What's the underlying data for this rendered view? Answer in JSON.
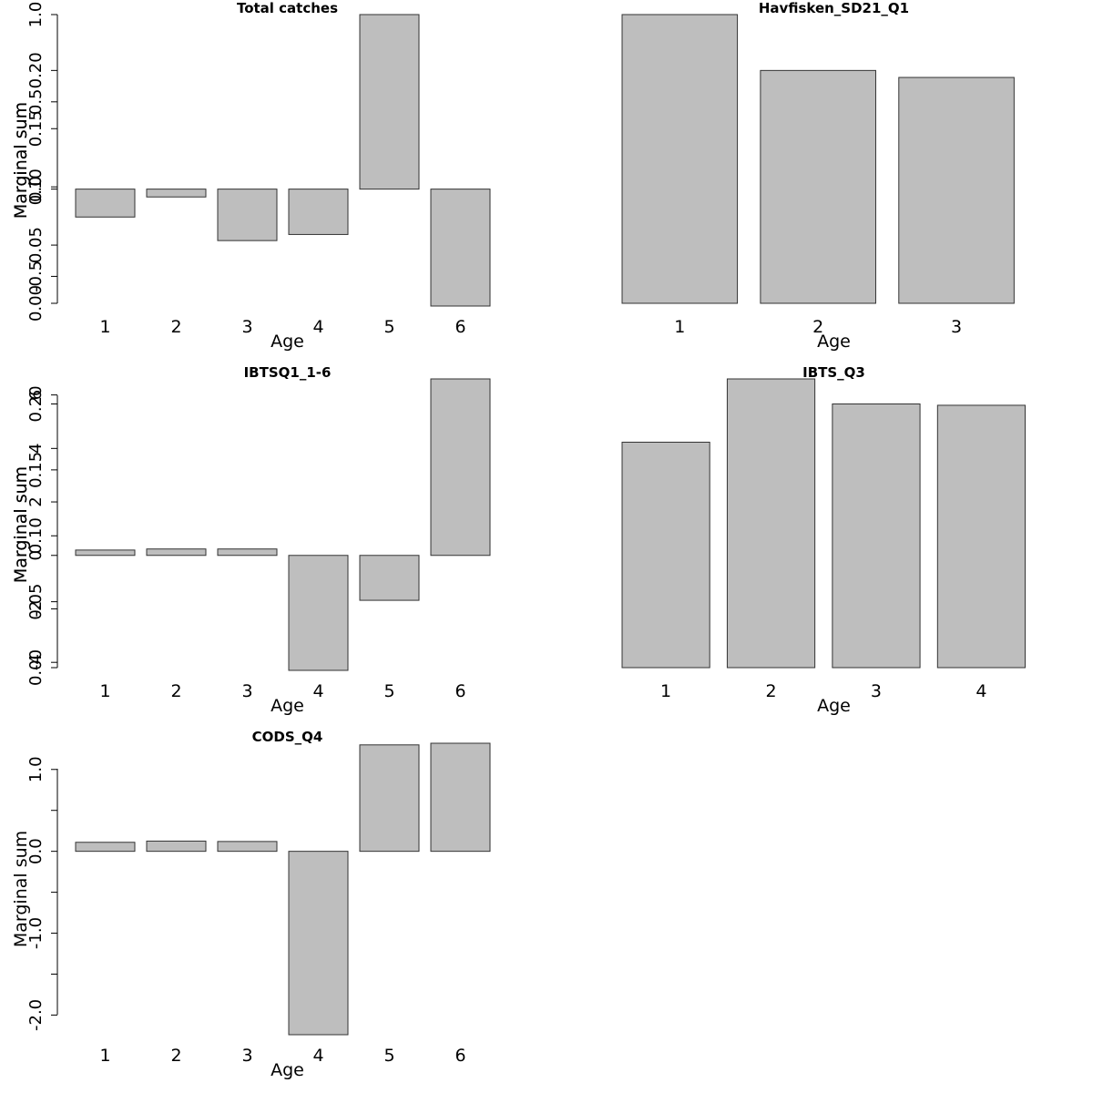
{
  "chart_data": [
    {
      "type": "bar",
      "title": "Total catches",
      "xlabel": "Age",
      "ylabel": "Marginal sum",
      "categories": [
        "1",
        "2",
        "3",
        "4",
        "5",
        "6"
      ],
      "values": [
        -0.16,
        -0.045,
        -0.295,
        -0.26,
        1.0,
        -0.67
      ],
      "ylim": [
        -0.67,
        1.0
      ],
      "yticks": [
        -0.5,
        0.0,
        0.5,
        1.0
      ],
      "ytick_labels": [
        "-0.5",
        "0.0",
        "0.5",
        "1.0"
      ],
      "minor_yticks": []
    },
    {
      "type": "bar",
      "title": "Havfisken_SD21_Q1",
      "xlabel": "Age",
      "ylabel": "Marginal sum",
      "categories": [
        "1",
        "2",
        "3"
      ],
      "values": [
        0.248,
        0.2,
        0.194
      ],
      "ylim": [
        0.0,
        0.248
      ],
      "yticks": [
        0.0,
        0.05,
        0.1,
        0.15,
        0.2
      ],
      "ytick_labels": [
        "0.00",
        "0.05",
        "0.10",
        "0.15",
        "0.20"
      ],
      "minor_yticks": []
    },
    {
      "type": "bar",
      "title": "IBTSQ1_1-6",
      "xlabel": "Age",
      "ylabel": "Marginal sum",
      "categories": [
        "1",
        "2",
        "3",
        "4",
        "5",
        "6"
      ],
      "values": [
        0.2,
        0.24,
        0.24,
        -4.3,
        -1.68,
        6.6
      ],
      "ylim": [
        -4.3,
        6.6
      ],
      "yticks": [
        -4,
        -2,
        0,
        2,
        4,
        6
      ],
      "ytick_labels": [
        "-4",
        "-2",
        "0",
        "2",
        "4",
        "6"
      ],
      "minor_yticks": []
    },
    {
      "type": "bar",
      "title": "IBTS_Q3",
      "xlabel": "Age",
      "ylabel": "Marginal sum",
      "categories": [
        "1",
        "2",
        "3",
        "4"
      ],
      "values": [
        0.171,
        0.219,
        0.2,
        0.199
      ],
      "ylim": [
        0.0,
        0.219
      ],
      "yticks": [
        0.0,
        0.05,
        0.1,
        0.15,
        0.2
      ],
      "ytick_labels": [
        "0.00",
        "0.05",
        "0.10",
        "0.15",
        "0.20"
      ],
      "minor_yticks": []
    },
    {
      "type": "bar",
      "title": "CODS_Q4",
      "xlabel": "Age",
      "ylabel": "Marginal sum",
      "categories": [
        "1",
        "2",
        "3",
        "4",
        "5",
        "6"
      ],
      "values": [
        0.11,
        0.125,
        0.12,
        -2.24,
        1.3,
        1.32
      ],
      "ylim": [
        -2.24,
        1.32
      ],
      "yticks": [
        -2.0,
        -1.0,
        0.0,
        1.0
      ],
      "ytick_labels": [
        "-2.0",
        "-1.0",
        "0.0",
        "1.0"
      ],
      "minor_yticks": [
        -1.5,
        -0.5,
        0.5
      ]
    }
  ],
  "colors": {
    "bar_fill": "#bebebe",
    "bar_stroke": "#333333",
    "axis": "#000000",
    "background": "#ffffff"
  }
}
